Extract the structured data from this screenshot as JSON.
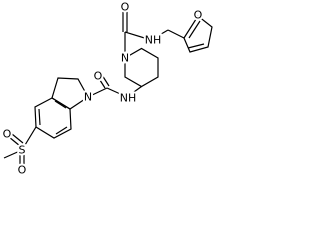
{
  "atoms": [
    {
      "label": "O"
    },
    {
      "label": "NH"
    },
    {
      "label": "O"
    },
    {
      "label": "N"
    },
    {
      "label": "O"
    },
    {
      "label": "N"
    },
    {
      "label": "NH"
    },
    {
      "label": "O"
    },
    {
      "label": "S"
    },
    {
      "label": "O"
    }
  ]
}
